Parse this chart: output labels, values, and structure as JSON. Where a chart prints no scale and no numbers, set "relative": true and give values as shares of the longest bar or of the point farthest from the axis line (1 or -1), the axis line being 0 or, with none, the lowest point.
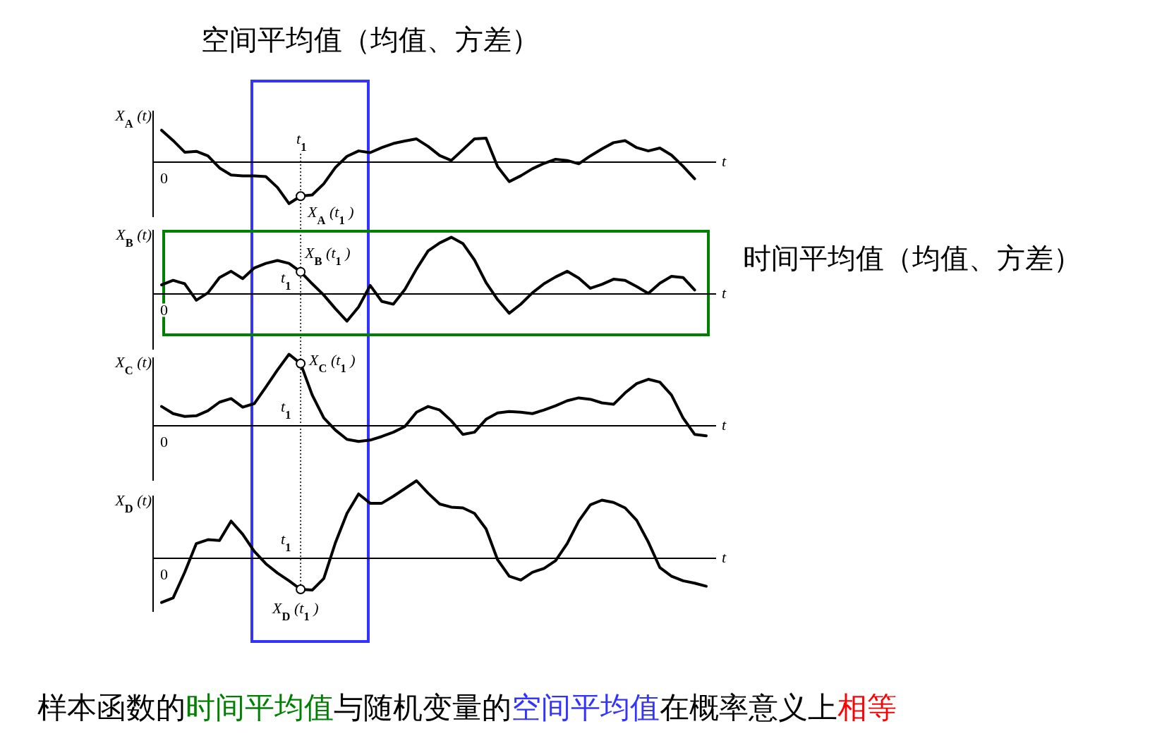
{
  "chart_data": [
    {
      "type": "line",
      "relative": true,
      "title": "空间平均值（均值、方差）",
      "ylabel": "X$_{A}$(t)",
      "xlabel": "t",
      "marker": "none",
      "line_style": "solid",
      "categories": [
        null,
        null,
        null,
        null,
        null,
        null,
        null,
        null,
        null,
        null,
        null,
        null,
        null,
        null,
        null,
        null,
        null,
        null,
        null,
        null,
        null,
        null,
        null,
        null,
        null,
        null,
        null,
        null,
        null,
        null,
        null,
        null,
        null,
        null,
        null,
        null,
        null,
        null,
        null,
        null,
        null,
        null,
        null,
        null,
        null,
        null,
        null
      ],
      "series": [
        {
          "color": "#000000",
          "values": [
            0.77,
            0.52,
            0.24,
            0.26,
            0.15,
            -0.14,
            -0.31,
            -0.33,
            -0.33,
            -0.35,
            -0.61,
            -1,
            -0.82,
            -0.79,
            -0.52,
            -0.13,
            0.14,
            0.27,
            0.23,
            0.35,
            0.45,
            0.51,
            0.56,
            0.38,
            0.16,
            0.04,
            0.3,
            0.56,
            0.58,
            -0.11,
            -0.47,
            -0.33,
            -0.16,
            -0.03,
            0.07,
            0.04,
            -0.04,
            0.15,
            0.32,
            0.47,
            0.52,
            0.35,
            0.27,
            0.34,
            0.17,
            -0.1,
            -0.4
          ]
        }
      ],
      "annotations": [
        "0",
        "t$_{1}$",
        "X$_{A}$(t$_{1}$)"
      ]
    },
    {
      "type": "line",
      "relative": true,
      "ylabel": "X$_{B}$(t)",
      "xlabel": "t",
      "marker": "none",
      "line_style": "solid",
      "categories": [
        null,
        null,
        null,
        null,
        null,
        null,
        null,
        null,
        null,
        null,
        null,
        null,
        null,
        null,
        null,
        null,
        null,
        null,
        null,
        null,
        null,
        null,
        null,
        null,
        null,
        null,
        null,
        null,
        null,
        null,
        null,
        null,
        null,
        null,
        null,
        null,
        null,
        null,
        null,
        null,
        null,
        null,
        null,
        null,
        null,
        null,
        null
      ],
      "series": [
        {
          "color": "#000000",
          "values": [
            0.16,
            0.24,
            0.18,
            -0.11,
            0.02,
            0.29,
            0.4,
            0.27,
            0.46,
            0.54,
            0.59,
            0.54,
            0.39,
            0.18,
            -0.02,
            -0.26,
            -0.48,
            -0.23,
            0.15,
            -0.13,
            -0.18,
            0.08,
            0.44,
            0.76,
            0.9,
            1,
            0.89,
            0.6,
            0.2,
            -0.1,
            -0.34,
            -0.18,
            0.02,
            0.18,
            0.3,
            0.4,
            0.28,
            0.1,
            0.17,
            0.26,
            0.24,
            0.13,
            0.01,
            0.19,
            0.31,
            0.29,
            0.07
          ]
        }
      ],
      "annotations": [
        "0",
        "t$_{1}$",
        "X$_{B}$(t$_{1}$)",
        "时间平均值（均值、方差）"
      ]
    },
    {
      "type": "line",
      "relative": true,
      "ylabel": "X$_{C}$(t)",
      "xlabel": "t",
      "marker": "none",
      "line_style": "solid",
      "categories": [
        null,
        null,
        null,
        null,
        null,
        null,
        null,
        null,
        null,
        null,
        null,
        null,
        null,
        null,
        null,
        null,
        null,
        null,
        null,
        null,
        null,
        null,
        null,
        null,
        null,
        null,
        null,
        null,
        null,
        null,
        null,
        null,
        null,
        null,
        null,
        null,
        null,
        null,
        null,
        null,
        null,
        null,
        null,
        null,
        null,
        null,
        null,
        null
      ],
      "series": [
        {
          "color": "#000000",
          "values": [
            0.27,
            0.17,
            0.13,
            0.14,
            0.21,
            0.33,
            0.38,
            0.26,
            0.31,
            0.54,
            0.78,
            1,
            0.87,
            0.43,
            0.11,
            -0.06,
            -0.19,
            -0.22,
            -0.2,
            -0.15,
            -0.09,
            -0.01,
            0.19,
            0.27,
            0.22,
            0.07,
            -0.12,
            -0.09,
            0.09,
            0.18,
            0.2,
            0.19,
            0.17,
            0.22,
            0.28,
            0.35,
            0.39,
            0.37,
            0.32,
            0.3,
            0.46,
            0.59,
            0.65,
            0.61,
            0.43,
            0.11,
            -0.12,
            -0.14
          ]
        }
      ],
      "annotations": [
        "0",
        "t$_{1}$",
        "X$_{C}$(t$_{1}$)"
      ]
    },
    {
      "type": "line",
      "relative": true,
      "ylabel": "X$_{D}$(t)",
      "xlabel": "t",
      "marker": "none",
      "line_style": "solid",
      "categories": [
        null,
        null,
        null,
        null,
        null,
        null,
        null,
        null,
        null,
        null,
        null,
        null,
        null,
        null,
        null,
        null,
        null,
        null,
        null,
        null,
        null,
        null,
        null,
        null,
        null,
        null,
        null,
        null,
        null,
        null,
        null,
        null,
        null,
        null,
        null,
        null,
        null,
        null,
        null,
        null,
        null,
        null,
        null,
        null,
        null,
        null,
        null,
        null
      ],
      "series": [
        {
          "color": "#000000",
          "values": [
            -0.57,
            -0.51,
            -0.18,
            0.19,
            0.24,
            0.23,
            0.48,
            0.31,
            0.09,
            -0.07,
            -0.19,
            -0.29,
            -0.4,
            -0.41,
            -0.26,
            0.2,
            0.58,
            0.83,
            0.71,
            0.71,
            0.8,
            0.9,
            1,
            0.84,
            0.7,
            0.66,
            0.65,
            0.58,
            0.38,
            -0.02,
            -0.23,
            -0.28,
            -0.18,
            -0.13,
            -0.03,
            0.19,
            0.48,
            0.69,
            0.75,
            0.72,
            0.65,
            0.49,
            0.21,
            -0.12,
            -0.23,
            -0.29,
            -0.32,
            -0.36
          ]
        }
      ],
      "annotations": [
        "0",
        "t$_{1}$",
        "X$_{D}$(t$_{1}$)",
        "样本函数的",
        "时间平均值",
        "与随机变量的",
        "空间平均值",
        "在概率意义上",
        "相等"
      ]
    }
  ]
}
